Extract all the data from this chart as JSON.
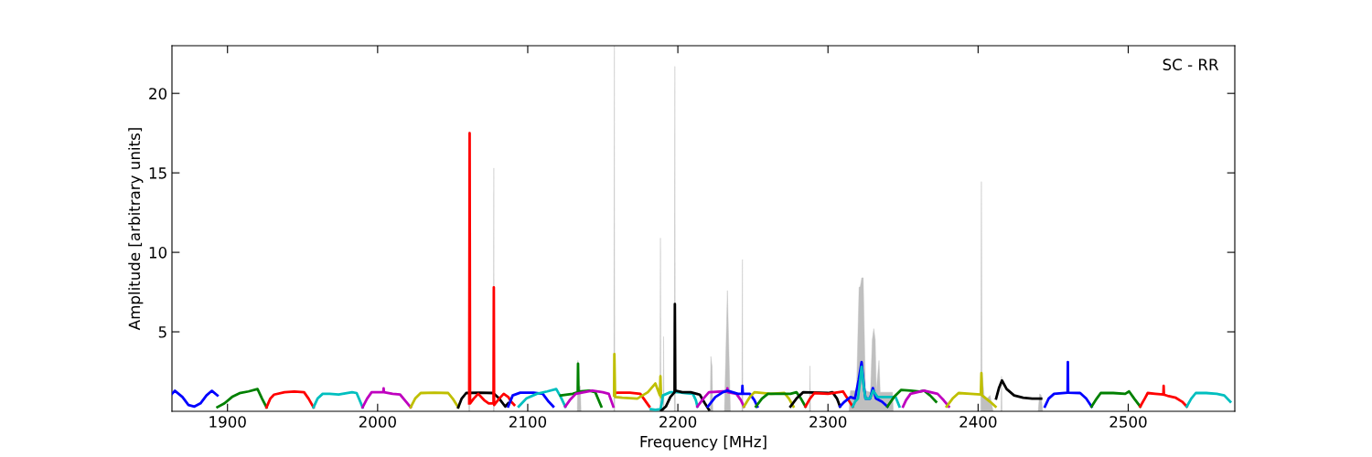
{
  "chart_data": {
    "type": "line",
    "xlabel": "Frequency [MHz]",
    "ylabel": "Amplitude [arbitrary units]",
    "annotations": [
      "SC - RR"
    ],
    "xlim": [
      1863,
      2571
    ],
    "ylim": [
      0,
      23
    ],
    "xticks": [
      1900,
      2000,
      2100,
      2200,
      2300,
      2400,
      2500
    ],
    "yticks": [
      5,
      10,
      15,
      20
    ],
    "grid": false,
    "legend": false,
    "series": [
      {
        "type": "area",
        "color": "#bfbfbf",
        "x": [
          2060.8,
          2061,
          2061.3,
          2070,
          2077.2,
          2077.4,
          2077.6,
          2100,
          2133,
          2133.4,
          2133.8,
          2135,
          2135.5,
          2145,
          2157.4,
          2157.7,
          2158,
          2170,
          2188.1,
          2188.4,
          2188.7,
          2189.2,
          2190.2,
          2190.5,
          2190.8,
          2194,
          2197.7,
          2198,
          2198.3,
          2218,
          2221.5,
          2222,
          2222.8,
          2223.3,
          2228,
          2231,
          2233,
          2235,
          2240,
          2242.7,
          2243,
          2243.3,
          2260,
          2287.6,
          2288,
          2288.4,
          2300,
          2314,
          2315,
          2319,
          2320.7,
          2321.5,
          2322.5,
          2323.5,
          2325,
          2328.3,
          2329.5,
          2330.5,
          2331.5,
          2332.2,
          2334,
          2334.8,
          2343,
          2343.5,
          2380,
          2401.8,
          2402.2,
          2402.6,
          2404,
          2406,
          2408,
          2410,
          2412,
          2415.3,
          2415.6,
          2415.9,
          2430,
          2440,
          2441,
          2442,
          2443
        ],
        "values": [
          0,
          17.6,
          0,
          null,
          0,
          15.3,
          0,
          null,
          0,
          3.2,
          1.5,
          1.6,
          0,
          null,
          0,
          23,
          0,
          null,
          0,
          10.9,
          0,
          null,
          0,
          4.7,
          0,
          null,
          0,
          21.7,
          0,
          null,
          0,
          3.45,
          2.8,
          0,
          null,
          0,
          7.6,
          0,
          null,
          0,
          9.55,
          0,
          null,
          0,
          2.85,
          0,
          null,
          0,
          1.3,
          1.3,
          7.8,
          7.85,
          8.4,
          8.4,
          1.3,
          1.2,
          4.5,
          5.2,
          4.5,
          1.3,
          3.2,
          1.2,
          1.2,
          0,
          null,
          0,
          14.45,
          2.5,
          1.0,
          0.8,
          1.0,
          0,
          null,
          0,
          2.2,
          0,
          null,
          0,
          1.1,
          1.0,
          0
        ]
      },
      {
        "color": "#0000ff",
        "x": [
          1863,
          1865,
          1870,
          1874,
          1878,
          1882,
          1886,
          1889.6,
          1893.3
        ],
        "values": [
          1.1,
          1.29,
          0.9,
          0.4,
          0.3,
          0.5,
          1.0,
          1.29,
          1.0
        ]
      },
      {
        "color": "#008000",
        "x": [
          1893.3,
          1898,
          1903,
          1908,
          1914,
          1920,
          1923,
          1926
        ],
        "values": [
          0.26,
          0.5,
          0.9,
          1.14,
          1.25,
          1.4,
          0.8,
          0.25
        ]
      },
      {
        "color": "#ff0000",
        "x": [
          1926,
          1928.5,
          1931,
          1938,
          1944.5,
          1951,
          1954,
          1957.3
        ],
        "values": [
          0.25,
          0.8,
          1.05,
          1.2,
          1.25,
          1.2,
          0.8,
          0.25
        ]
      },
      {
        "color": "#00bfbf",
        "x": [
          1957.3,
          1960,
          1963.4,
          1968,
          1974,
          1983,
          1986,
          1988,
          1990
        ],
        "values": [
          0.25,
          0.8,
          1.1,
          1.1,
          1.05,
          1.2,
          1.15,
          0.7,
          0.25
        ]
      },
      {
        "color": "#bf00bf",
        "x": [
          1990,
          1993,
          1996,
          2003.8,
          2004,
          2004.2,
          2010,
          2015,
          2019,
          2022
        ],
        "values": [
          0.25,
          0.8,
          1.2,
          1.2,
          1.45,
          1.2,
          1.1,
          1.05,
          0.6,
          0.25
        ]
      },
      {
        "color": "#bfbf00",
        "x": [
          2022,
          2025,
          2028.7,
          2038,
          2047,
          2050,
          2053.7
        ],
        "values": [
          0.25,
          0.8,
          1.15,
          1.17,
          1.15,
          0.8,
          0.25
        ]
      },
      {
        "color": "#000000",
        "x": [
          2053.7,
          2056,
          2059,
          2068,
          2077,
          2081,
          2085,
          2087
        ],
        "values": [
          0.25,
          0.8,
          1.15,
          1.17,
          1.15,
          0.8,
          0.3,
          0.5
        ]
      },
      {
        "color": "#ff0000",
        "x": [
          2061,
          2061.3,
          2061.6,
          2064,
          2067,
          2071,
          2074,
          2077.2,
          2077.4,
          2077.6,
          2081,
          2084,
          2087,
          2089,
          2091
        ],
        "values": [
          0.5,
          17.5,
          0.5,
          0.8,
          1.1,
          0.7,
          0.5,
          0.5,
          7.8,
          0.4,
          0.8,
          1.1,
          0.9,
          0.6,
          0.4
        ]
      },
      {
        "color": "#0000ff",
        "x": [
          2087,
          2090,
          2095,
          2104,
          2110,
          2114,
          2117
        ],
        "values": [
          0.3,
          1.0,
          1.17,
          1.17,
          1.1,
          0.6,
          0.3
        ]
      },
      {
        "color": "#00bfbf",
        "x": [
          2094,
          2099,
          2106,
          2113,
          2119,
          2122,
          2125
        ],
        "values": [
          0.3,
          0.8,
          1.1,
          1.25,
          1.4,
          0.9,
          0.3
        ]
      },
      {
        "color": "#008000",
        "x": [
          2122,
          2130,
          2133.3,
          2133.5,
          2133.8,
          2141,
          2145,
          2149
        ],
        "values": [
          1.0,
          1.1,
          1.2,
          3.0,
          1.25,
          1.3,
          1.2,
          0.3
        ]
      },
      {
        "color": "#bf00bf",
        "x": [
          2125,
          2128,
          2132,
          2143,
          2150,
          2154,
          2157
        ],
        "values": [
          0.3,
          0.7,
          1.1,
          1.3,
          1.2,
          1.1,
          0.3
        ]
      },
      {
        "color": "#ff0000",
        "x": [
          2157.7,
          2160,
          2168,
          2175,
          2178,
          2181
        ],
        "values": [
          1.15,
          1.17,
          1.17,
          1.1,
          0.7,
          0.3
        ]
      },
      {
        "color": "#bfbf00",
        "x": [
          2157.5,
          2157.7,
          2158.2,
          2163,
          2173,
          2180,
          2185,
          2188,
          2188.4,
          2188.8
        ],
        "values": [
          1.0,
          3.6,
          0.9,
          0.85,
          0.8,
          1.2,
          1.75,
          1.0,
          2.2,
          0.9
        ]
      },
      {
        "color": "#00bfbf",
        "x": [
          2182,
          2185,
          2188.5,
          2189.5,
          2190,
          2195,
          2200,
          2205,
          2210,
          2212,
          2213
        ],
        "values": [
          0.14,
          0.1,
          0.14,
          0.6,
          1.0,
          1.2,
          1.2,
          1.15,
          1.1,
          0.7,
          0.3
        ]
      },
      {
        "color": "#000000",
        "x": [
          2189,
          2192,
          2195,
          2197.8,
          2198,
          2198.3,
          2203,
          2208.5,
          2214.6,
          2218,
          2220.7
        ],
        "values": [
          0.05,
          0.3,
          0.9,
          1.2,
          6.75,
          1.3,
          1.2,
          1.2,
          1.05,
          0.5,
          0.1
        ]
      },
      {
        "color": "#bf00bf",
        "x": [
          2213,
          2217,
          2220.7,
          2230,
          2232.8,
          2233,
          2233.3,
          2239,
          2242,
          2244
        ],
        "values": [
          0.3,
          0.8,
          1.2,
          1.25,
          1.25,
          1.45,
          1.2,
          1.1,
          0.7,
          0.3
        ]
      },
      {
        "color": "#0000ff",
        "x": [
          2220,
          2225,
          2230,
          2233,
          2240,
          2242.8,
          2243,
          2243.3,
          2248,
          2251,
          2253
        ],
        "values": [
          0.3,
          0.9,
          1.2,
          1.3,
          1.1,
          1.1,
          1.6,
          1.1,
          1.1,
          0.7,
          0.3
        ]
      },
      {
        "color": "#bfbf00",
        "x": [
          2244,
          2248,
          2251,
          2262,
          2271,
          2274,
          2277
        ],
        "values": [
          0.3,
          0.9,
          1.2,
          1.1,
          1.15,
          0.8,
          0.3
        ]
      },
      {
        "color": "#008000",
        "x": [
          2252,
          2256,
          2260,
          2275,
          2279,
          2282,
          2285
        ],
        "values": [
          0.3,
          0.8,
          1.1,
          1.1,
          1.2,
          0.8,
          0.3
        ]
      },
      {
        "color": "#000000",
        "x": [
          2275,
          2279,
          2283.5,
          2300,
          2303,
          2306,
          2308
        ],
        "values": [
          0.3,
          0.8,
          1.2,
          1.15,
          1.2,
          0.8,
          0.3
        ]
      },
      {
        "color": "#ff0000",
        "x": [
          2285,
          2288,
          2291,
          2300,
          2310,
          2313,
          2316.5
        ],
        "values": [
          0.3,
          0.8,
          1.15,
          1.1,
          1.25,
          0.8,
          0.3
        ]
      },
      {
        "color": "#0000ff",
        "x": [
          2308,
          2311,
          2315,
          2318,
          2320.5,
          2322.4,
          2324,
          2325,
          2328,
          2329.9,
          2332,
          2336,
          2339.6
        ],
        "values": [
          0.3,
          0.6,
          0.9,
          0.8,
          2.0,
          3.1,
          1.5,
          0.8,
          0.8,
          1.46,
          0.8,
          0.6,
          0.3
        ]
      },
      {
        "color": "#00bfbf",
        "x": [
          2316.5,
          2318,
          2320,
          2322.4,
          2324,
          2325,
          2328,
          2330,
          2333,
          2345,
          2347.6
        ],
        "values": [
          0.3,
          0.6,
          0.8,
          2.8,
          1.4,
          0.8,
          0.8,
          1.3,
          0.9,
          0.9,
          0.3
        ]
      },
      {
        "color": "#008000",
        "x": [
          2339.6,
          2344,
          2348.8,
          2355,
          2361,
          2364,
          2368,
          2372
        ],
        "values": [
          0.3,
          0.9,
          1.35,
          1.3,
          1.25,
          1.3,
          1.0,
          0.6
        ]
      },
      {
        "color": "#bf00bf",
        "x": [
          2350,
          2352,
          2355,
          2364,
          2373,
          2377,
          2380.5
        ],
        "values": [
          0.3,
          0.7,
          1.1,
          1.3,
          1.1,
          0.7,
          0.3
        ]
      },
      {
        "color": "#bfbf00",
        "x": [
          2379,
          2383,
          2387,
          2395,
          2401.8,
          2402.2,
          2402.6,
          2404,
          2408,
          2411.6
        ],
        "values": [
          0.3,
          0.8,
          1.15,
          1.1,
          1.05,
          2.4,
          1.0,
          0.9,
          0.6,
          0.3
        ]
      },
      {
        "color": "#000000",
        "x": [
          2412,
          2414,
          2415.9,
          2419,
          2424,
          2430,
          2436,
          2442
        ],
        "values": [
          0.8,
          1.5,
          1.94,
          1.4,
          1.0,
          0.85,
          0.8,
          0.8
        ]
      },
      {
        "color": "#0000ff",
        "x": [
          2444.5,
          2447,
          2450.6,
          2459.6,
          2459.8,
          2460,
          2468,
          2472,
          2475.6
        ],
        "values": [
          0.3,
          0.8,
          1.1,
          1.17,
          3.1,
          1.17,
          1.15,
          0.8,
          0.3
        ]
      },
      {
        "color": "#008000",
        "x": [
          2475.6,
          2479,
          2481.7,
          2490,
          2498,
          2500.6,
          2504,
          2508
        ],
        "values": [
          0.3,
          0.8,
          1.15,
          1.15,
          1.1,
          1.25,
          0.8,
          0.3
        ]
      },
      {
        "color": "#ff0000",
        "x": [
          2508,
          2511,
          2513,
          2518,
          2523.4,
          2523.6,
          2523.8,
          2527,
          2531.7,
          2536,
          2539
        ],
        "values": [
          0.3,
          0.8,
          1.15,
          1.1,
          1.05,
          1.6,
          1.05,
          0.95,
          0.85,
          0.6,
          0.3
        ]
      },
      {
        "color": "#00bfbf",
        "x": [
          2539,
          2542,
          2545,
          2552,
          2559,
          2564,
          2568
        ],
        "values": [
          0.3,
          0.8,
          1.15,
          1.15,
          1.1,
          1.0,
          0.6
        ]
      }
    ]
  }
}
